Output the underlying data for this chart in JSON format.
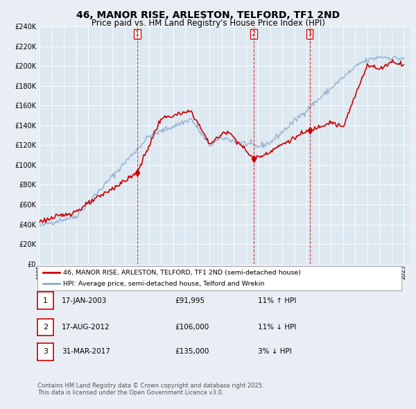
{
  "title": "46, MANOR RISE, ARLESTON, TELFORD, TF1 2ND",
  "subtitle": "Price paid vs. HM Land Registry's House Price Index (HPI)",
  "legend_line1": "46, MANOR RISE, ARLESTON, TELFORD, TF1 2ND (semi-detached house)",
  "legend_line2": "HPI: Average price, semi-detached house, Telford and Wrekin",
  "footnote": "Contains HM Land Registry data © Crown copyright and database right 2025.\nThis data is licensed under the Open Government Licence v3.0.",
  "table": [
    {
      "num": "1",
      "date": "17-JAN-2003",
      "price": "£91,995",
      "hpi": "11% ↑ HPI"
    },
    {
      "num": "2",
      "date": "17-AUG-2012",
      "price": "£106,000",
      "hpi": "11% ↓ HPI"
    },
    {
      "num": "3",
      "date": "31-MAR-2017",
      "price": "£135,000",
      "hpi": "3% ↓ HPI"
    }
  ],
  "vlines": [
    {
      "date_num": 2003.04,
      "label": "1"
    },
    {
      "date_num": 2012.63,
      "label": "2"
    },
    {
      "date_num": 2017.25,
      "label": "3"
    }
  ],
  "sale_points": [
    {
      "date_num": 2003.04,
      "value": 91995
    },
    {
      "date_num": 2012.63,
      "value": 106000
    },
    {
      "date_num": 2017.25,
      "value": 135000
    }
  ],
  "red_line_color": "#cc0000",
  "blue_line_color": "#88aacc",
  "background_color": "#e8eef4",
  "plot_bg_color": "#dde8f0",
  "ylim": [
    0,
    240000
  ],
  "xlim_start": 1995,
  "xlim_end": 2025.5
}
